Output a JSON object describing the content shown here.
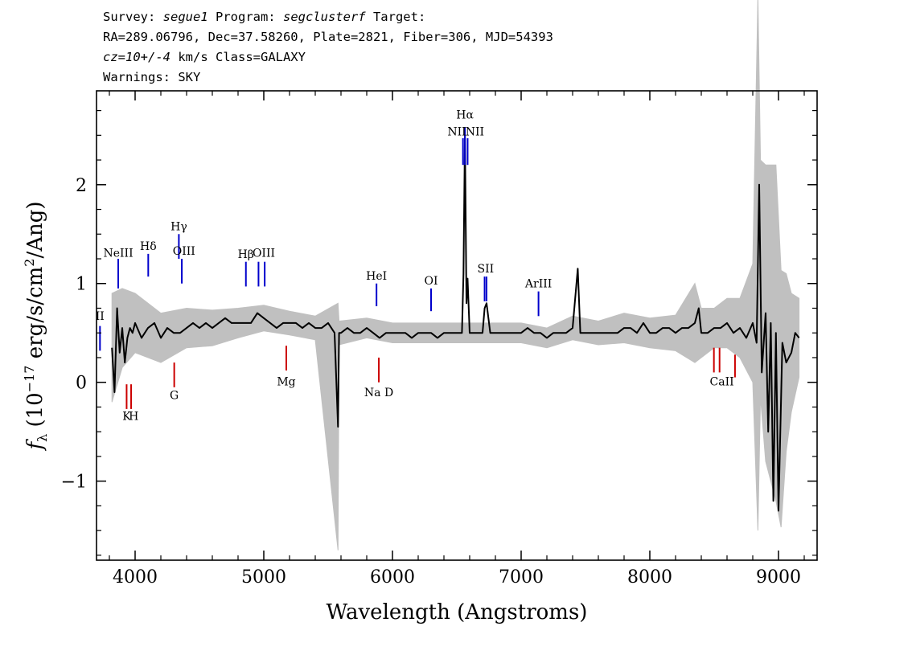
{
  "header": {
    "survey_label": "Survey: ",
    "survey": "segue1",
    "program_label": " Program: ",
    "program": "segclusterf",
    "target_label": " Target:",
    "line2": "RA=289.06796, Dec=37.58260, Plate=2821, Fiber=306, MJD=54393",
    "cz": "cz=10+/-4",
    "cz_rest": " km/s Class=GALAXY",
    "warnings": "Warnings: SKY"
  },
  "chart_data": {
    "type": "line",
    "xlabel": "Wavelength (Angstroms)",
    "ylabel": "fλ (10^-17 erg/s/cm²/Ang)",
    "xlim": [
      3700,
      9300
    ],
    "ylim": [
      -1.8,
      2.95
    ],
    "xticks": [
      4000,
      5000,
      6000,
      7000,
      8000,
      9000
    ],
    "yticks": [
      -1,
      0,
      1,
      2
    ],
    "series": [
      {
        "role": "flux",
        "color": "#000000",
        "x": [
          3820,
          3840,
          3860,
          3880,
          3900,
          3920,
          3940,
          3960,
          3980,
          4000,
          4050,
          4100,
          4150,
          4200,
          4250,
          4300,
          4350,
          4400,
          4450,
          4500,
          4550,
          4600,
          4650,
          4700,
          4750,
          4800,
          4850,
          4900,
          4950,
          5000,
          5050,
          5100,
          5150,
          5200,
          5250,
          5300,
          5350,
          5400,
          5450,
          5500,
          5550,
          5577,
          5585,
          5600,
          5650,
          5700,
          5750,
          5800,
          5850,
          5900,
          5950,
          6000,
          6050,
          6100,
          6150,
          6200,
          6250,
          6300,
          6350,
          6400,
          6450,
          6500,
          6540,
          6552,
          6563,
          6575,
          6584,
          6600,
          6650,
          6700,
          6716,
          6731,
          6760,
          6800,
          6850,
          6900,
          6950,
          7000,
          7050,
          7100,
          7150,
          7200,
          7250,
          7300,
          7350,
          7400,
          7440,
          7460,
          7500,
          7550,
          7600,
          7650,
          7700,
          7750,
          7800,
          7850,
          7900,
          7950,
          8000,
          8050,
          8100,
          8150,
          8200,
          8250,
          8300,
          8350,
          8380,
          8400,
          8450,
          8500,
          8550,
          8600,
          8650,
          8700,
          8750,
          8800,
          8830,
          8850,
          8870,
          8900,
          8920,
          8940,
          8960,
          8980,
          9000,
          9030,
          9060,
          9100,
          9130,
          9160
        ],
        "y": [
          0.35,
          -0.1,
          0.75,
          0.3,
          0.55,
          0.2,
          0.45,
          0.55,
          0.5,
          0.6,
          0.45,
          0.55,
          0.6,
          0.45,
          0.55,
          0.5,
          0.5,
          0.55,
          0.6,
          0.55,
          0.6,
          0.55,
          0.6,
          0.65,
          0.6,
          0.6,
          0.6,
          0.6,
          0.7,
          0.65,
          0.6,
          0.55,
          0.6,
          0.6,
          0.6,
          0.55,
          0.6,
          0.55,
          0.55,
          0.6,
          0.5,
          -0.45,
          0.5,
          0.5,
          0.55,
          0.5,
          0.5,
          0.55,
          0.5,
          0.45,
          0.5,
          0.5,
          0.5,
          0.5,
          0.45,
          0.5,
          0.5,
          0.5,
          0.45,
          0.5,
          0.5,
          0.5,
          0.5,
          1.1,
          2.5,
          0.8,
          1.05,
          0.5,
          0.5,
          0.5,
          0.75,
          0.8,
          0.5,
          0.5,
          0.5,
          0.5,
          0.5,
          0.5,
          0.55,
          0.5,
          0.5,
          0.45,
          0.5,
          0.5,
          0.5,
          0.55,
          1.15,
          0.5,
          0.5,
          0.5,
          0.5,
          0.5,
          0.5,
          0.5,
          0.55,
          0.55,
          0.5,
          0.6,
          0.5,
          0.5,
          0.55,
          0.55,
          0.5,
          0.55,
          0.55,
          0.6,
          0.75,
          0.5,
          0.5,
          0.55,
          0.55,
          0.6,
          0.5,
          0.55,
          0.45,
          0.6,
          0.4,
          2.0,
          0.1,
          0.7,
          -0.5,
          0.6,
          -1.2,
          0.5,
          -1.3,
          0.4,
          0.2,
          0.3,
          0.5,
          0.45
        ]
      },
      {
        "role": "error",
        "color": "#c0c0c0",
        "x": [
          3820,
          3900,
          4000,
          4200,
          4400,
          4600,
          4800,
          5000,
          5200,
          5400,
          5577,
          5585,
          5800,
          6000,
          6200,
          6400,
          6600,
          6800,
          7000,
          7200,
          7400,
          7600,
          7800,
          8000,
          8200,
          8350,
          8400,
          8500,
          8600,
          8700,
          8800,
          8840,
          8860,
          8900,
          8940,
          8980,
          9020,
          9060,
          9100,
          9160
        ],
        "y": [
          0.55,
          0.4,
          0.3,
          0.25,
          0.2,
          0.18,
          0.15,
          0.13,
          0.12,
          0.12,
          1.25,
          0.12,
          0.1,
          0.1,
          0.1,
          0.1,
          0.1,
          0.1,
          0.1,
          0.1,
          0.12,
          0.12,
          0.15,
          0.15,
          0.18,
          0.4,
          0.25,
          0.2,
          0.25,
          0.3,
          0.6,
          2.7,
          1.2,
          1.5,
          1.6,
          1.7,
          1.3,
          0.9,
          0.6,
          0.4
        ]
      }
    ],
    "lines_emission": [
      {
        "label": "NeIII",
        "x": 3869,
        "y_top": 1.25,
        "y_bot": 0.95
      },
      {
        "label": "Hδ",
        "x": 4102,
        "y_top": 1.3,
        "y_bot": 1.07
      },
      {
        "label": "Hγ",
        "x": 4340,
        "y_top": 1.5,
        "y_bot": 1.25
      },
      {
        "label": "OIII",
        "x": 4363,
        "y_top": 1.25,
        "y_bot": 1.0
      },
      {
        "label": "Hβ",
        "x": 4861,
        "y_top": 1.22,
        "y_bot": 0.97
      },
      {
        "label": "OIII",
        "x": 4959,
        "y_top": 1.22,
        "y_bot": 0.97
      },
      {
        "label": "OIII",
        "x": 5007,
        "y_top": 1.22,
        "y_bot": 0.97
      },
      {
        "label": "HeI",
        "x": 5876,
        "y_top": 1.0,
        "y_bot": 0.77
      },
      {
        "label": "OI",
        "x": 6300,
        "y_top": 0.95,
        "y_bot": 0.72
      },
      {
        "label": "NII",
        "x": 6548,
        "y_top": 2.47,
        "y_bot": 2.2
      },
      {
        "label": "Hα",
        "x": 6563,
        "y_top": 2.58,
        "y_bot": 2.2
      },
      {
        "label": "NII",
        "x": 6584,
        "y_top": 2.47,
        "y_bot": 2.2
      },
      {
        "label": "SII",
        "x": 6716,
        "y_top": 1.07,
        "y_bot": 0.82
      },
      {
        "label": "SII",
        "x": 6731,
        "y_top": 1.07,
        "y_bot": 0.82
      },
      {
        "label": "ArIII",
        "x": 7135,
        "y_top": 0.92,
        "y_bot": 0.67
      },
      {
        "label": "II",
        "x": 3727,
        "y_top": 0.57,
        "y_bot": 0.32
      }
    ],
    "lines_absorption": [
      {
        "label": "K",
        "x": 3934,
        "y_top": -0.02,
        "y_bot": -0.27
      },
      {
        "label": "H",
        "x": 3969,
        "y_top": -0.02,
        "y_bot": -0.27
      },
      {
        "label": "G",
        "x": 4304,
        "y_top": 0.2,
        "y_bot": -0.05
      },
      {
        "label": "Mg",
        "x": 5175,
        "y_top": 0.37,
        "y_bot": 0.12
      },
      {
        "label": "Na",
        "x": 5894,
        "y_top": 0.25,
        "y_bot": 0.0
      },
      {
        "label": "CaII",
        "x": 8498,
        "y_top": 0.35,
        "y_bot": 0.1
      },
      {
        "label": "CaII",
        "x": 8542,
        "y_top": 0.35,
        "y_bot": 0.1
      },
      {
        "label": "CaII",
        "x": 8662,
        "y_top": 0.28,
        "y_bot": 0.05
      }
    ],
    "line_labels": [
      {
        "text": "NeIII",
        "x": 3869,
        "y": 1.27,
        "color": "#000000"
      },
      {
        "text": "Hδ",
        "x": 4102,
        "y": 1.34,
        "color": "#000000"
      },
      {
        "text": "Hγ",
        "x": 4340,
        "y": 1.54,
        "color": "#000000"
      },
      {
        "text": "OIII",
        "x": 4380,
        "y": 1.29,
        "color": "#000000"
      },
      {
        "text": "Hβ",
        "x": 4861,
        "y": 1.26,
        "color": "#000000"
      },
      {
        "text": "OIII",
        "x": 5000,
        "y": 1.27,
        "color": "#000000"
      },
      {
        "text": "HeI",
        "x": 5876,
        "y": 1.04,
        "color": "#000000"
      },
      {
        "text": "OI",
        "x": 6300,
        "y": 0.99,
        "color": "#000000"
      },
      {
        "text": "NII",
        "x": 6500,
        "y": 2.5,
        "color": "#000000"
      },
      {
        "text": "Hα",
        "x": 6563,
        "y": 2.67,
        "color": "#000000"
      },
      {
        "text": "NII",
        "x": 6640,
        "y": 2.5,
        "color": "#000000"
      },
      {
        "text": "SII",
        "x": 6724,
        "y": 1.11,
        "color": "#000000"
      },
      {
        "text": "ArIII",
        "x": 7135,
        "y": 0.96,
        "color": "#000000"
      },
      {
        "text": "II",
        "x": 3727,
        "y": 0.63,
        "color": "#000000"
      },
      {
        "text": "K",
        "x": 3934,
        "y": -0.38,
        "color": "#000000"
      },
      {
        "text": "H",
        "x": 3989,
        "y": -0.38,
        "color": "#000000"
      },
      {
        "text": "G",
        "x": 4304,
        "y": -0.17,
        "color": "#000000"
      },
      {
        "text": "Mg",
        "x": 5175,
        "y": -0.03,
        "color": "#000000"
      },
      {
        "text": "Na  D",
        "x": 5894,
        "y": -0.14,
        "color": "#000000"
      },
      {
        "text": "CaII",
        "x": 8560,
        "y": -0.03,
        "color": "#000000"
      }
    ],
    "emission_color": "#0000cc",
    "absorption_color": "#cc0000",
    "grid": false
  }
}
